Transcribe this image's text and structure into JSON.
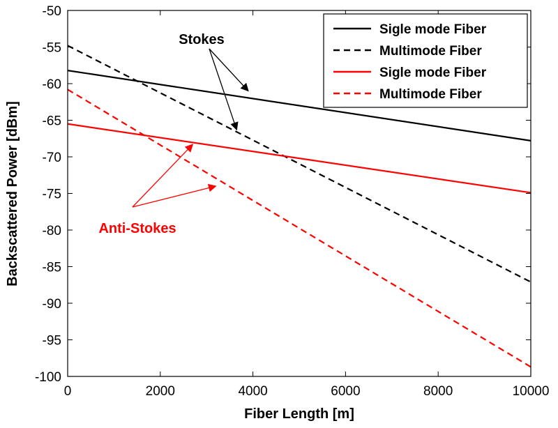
{
  "chart_data": {
    "type": "line",
    "title": "",
    "xlabel": "Fiber Length [m]",
    "ylabel": "Backscattered Power [dBm]",
    "xlim": [
      0,
      10000
    ],
    "ylim": [
      -100,
      -50
    ],
    "xticks": [
      0,
      2000,
      4000,
      6000,
      8000,
      10000
    ],
    "yticks": [
      -50,
      -55,
      -60,
      -65,
      -70,
      -75,
      -80,
      -85,
      -90,
      -95,
      -100
    ],
    "grid": false,
    "legend_position": "top-right",
    "series": [
      {
        "name": "Sigle mode Fiber",
        "x": [
          0,
          10000
        ],
        "y": [
          -58.2,
          -67.8
        ],
        "color": "#000000",
        "dash": "solid"
      },
      {
        "name": "Multimode Fiber",
        "x": [
          0,
          10000
        ],
        "y": [
          -54.8,
          -87.1
        ],
        "color": "#000000",
        "dash": "dashed"
      },
      {
        "name": "Sigle mode Fiber",
        "x": [
          0,
          10000
        ],
        "y": [
          -65.5,
          -74.9
        ],
        "color": "#ff0000",
        "dash": "solid"
      },
      {
        "name": "Multimode Fiber",
        "x": [
          0,
          10000
        ],
        "y": [
          -60.8,
          -98.7
        ],
        "color": "#ff0000",
        "dash": "dashed"
      }
    ],
    "annotations": [
      {
        "text": "Stokes",
        "color": "#000000",
        "arrow_targets": [
          [
            3900,
            -61.0
          ],
          [
            3650,
            -66.3
          ]
        ]
      },
      {
        "text": "Anti-Stokes",
        "color": "#ff0000",
        "arrow_targets": [
          [
            2700,
            -68.3
          ],
          [
            3200,
            -74.0
          ]
        ]
      }
    ]
  }
}
